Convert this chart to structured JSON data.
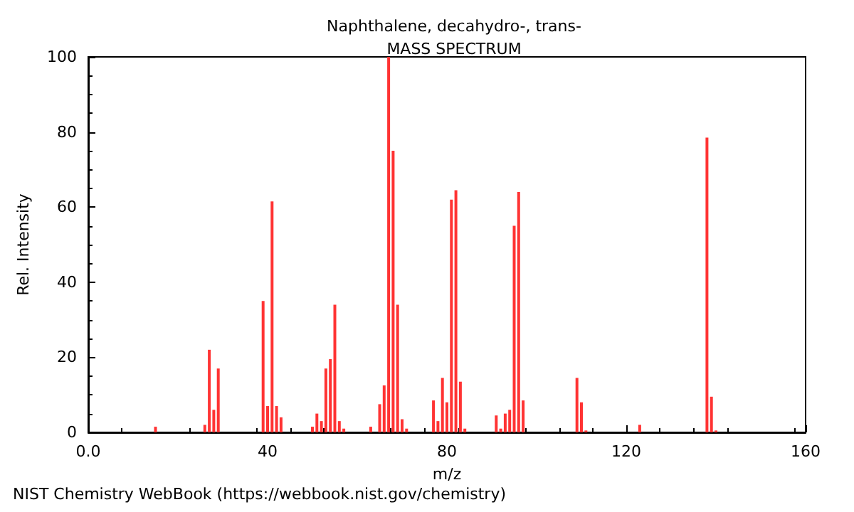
{
  "chart_data": {
    "type": "bar",
    "title": "Naphthalene, decahydro-, trans-",
    "subtitle": "MASS SPECTRUM",
    "xlabel": "m/z",
    "ylabel": "Rel. Intensity",
    "annotations": [
      "NIST Chemistry WebBook (https://webbook.nist.gov/chemistry)"
    ],
    "x": [
      15,
      26,
      27,
      28,
      29,
      39,
      40,
      41,
      42,
      43,
      50,
      51,
      52,
      53,
      54,
      55,
      56,
      57,
      63,
      65,
      66,
      67,
      68,
      69,
      70,
      71,
      77,
      78,
      79,
      80,
      81,
      82,
      83,
      84,
      91,
      92,
      93,
      94,
      95,
      96,
      97,
      109,
      110,
      111,
      123,
      138,
      139,
      140
    ],
    "values": [
      1.5,
      2,
      22,
      6,
      17,
      35,
      7,
      61.5,
      7,
      4,
      1.5,
      5,
      3,
      17,
      19.5,
      34,
      3,
      1,
      1.5,
      7.5,
      12.5,
      100,
      75,
      34,
      3.5,
      1,
      8.5,
      3,
      14.5,
      8,
      62,
      64.5,
      13.5,
      1,
      4.5,
      1,
      5,
      6,
      55,
      64,
      8.5,
      14.5,
      8,
      0.5,
      2,
      78.5,
      9.5,
      0.5
    ],
    "color": "#ff3333",
    "xlim": [
      0,
      160
    ],
    "xticks": [
      {
        "value": 0,
        "label": "0.0"
      },
      40,
      80,
      120,
      160
    ],
    "ylim": [
      0,
      100
    ],
    "yticks": [
      0,
      20,
      40,
      60,
      80,
      100
    ],
    "grid": false
  }
}
